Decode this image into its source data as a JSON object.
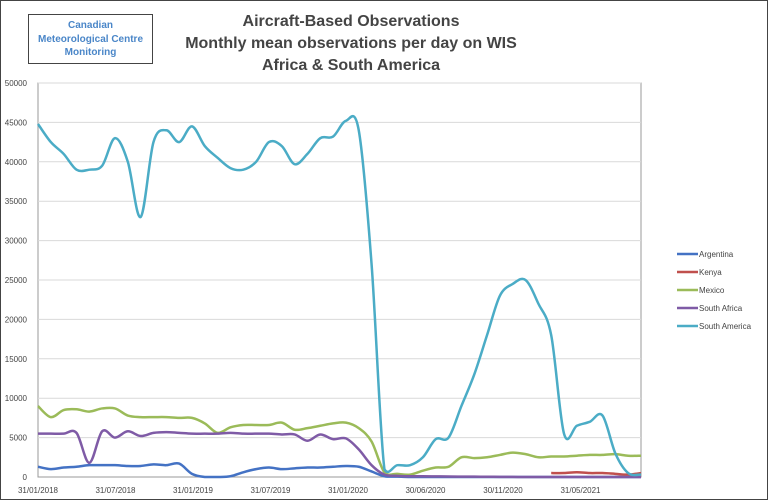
{
  "logo": {
    "line1": "Canadian",
    "line2": "Meteorological Centre",
    "line3": "Monitoring"
  },
  "chart_data": {
    "type": "line",
    "title": [
      "Aircraft-Based Observations",
      "Monthly mean observations per day on WIS",
      "Africa & South America"
    ],
    "xlabel": "",
    "ylabel": "",
    "ylim": [
      0,
      50000
    ],
    "yticks": [
      0,
      5000,
      10000,
      15000,
      20000,
      25000,
      30000,
      35000,
      40000,
      45000,
      50000
    ],
    "xtick_labels": [
      "31/01/2018",
      "31/07/2018",
      "31/01/2019",
      "31/07/2019",
      "31/01/2020",
      "30/06/2020",
      "30/11/2020",
      "31/05/2021"
    ],
    "x_start": "2018-01",
    "x_step": "month",
    "legend_position": "right",
    "series": [
      {
        "name": "Argentina",
        "color": "#4472c4",
        "values": [
          1300,
          1000,
          1200,
          1300,
          1500,
          1500,
          1500,
          1400,
          1400,
          1600,
          1500,
          1700,
          400,
          0,
          0,
          100,
          600,
          1000,
          1200,
          1000,
          1100,
          1200,
          1200,
          1300,
          1400,
          1300,
          700,
          100,
          50,
          0,
          0,
          0,
          0,
          0,
          0,
          0,
          0,
          0,
          0,
          0,
          0,
          0,
          0,
          0,
          0,
          0,
          0,
          0
        ]
      },
      {
        "name": "Kenya",
        "color": "#c0504d",
        "values": [
          null,
          null,
          null,
          null,
          null,
          null,
          null,
          null,
          null,
          null,
          null,
          null,
          null,
          null,
          null,
          null,
          null,
          null,
          null,
          null,
          null,
          null,
          null,
          null,
          null,
          null,
          null,
          null,
          null,
          null,
          null,
          null,
          null,
          null,
          null,
          null,
          null,
          null,
          null,
          null,
          500,
          500,
          600,
          500,
          500,
          400,
          300,
          500
        ]
      },
      {
        "name": "Mexico",
        "color": "#9bbb59",
        "values": [
          9000,
          7600,
          8500,
          8600,
          8300,
          8700,
          8700,
          7800,
          7600,
          7600,
          7600,
          7500,
          7500,
          6800,
          5600,
          6300,
          6600,
          6600,
          6600,
          6900,
          6000,
          6200,
          6500,
          6800,
          6900,
          6200,
          4500,
          600,
          400,
          300,
          800,
          1200,
          1300,
          2500,
          2400,
          2500,
          2800,
          3100,
          2900,
          2500,
          2600,
          2600,
          2700,
          2800,
          2800,
          2900,
          2700,
          2700
        ]
      },
      {
        "name": "South Africa",
        "color": "#7f5ba6",
        "values": [
          5500,
          5500,
          5500,
          5600,
          1800,
          5800,
          5000,
          5800,
          5200,
          5600,
          5700,
          5600,
          5500,
          5500,
          5500,
          5600,
          5500,
          5500,
          5500,
          5400,
          5400,
          4600,
          5400,
          4800,
          4900,
          3500,
          1500,
          300,
          150,
          100,
          100,
          80,
          60,
          50,
          40,
          30,
          20,
          10,
          0,
          0,
          0,
          0,
          0,
          0,
          0,
          0,
          0,
          0
        ]
      },
      {
        "name": "South America",
        "color": "#4bacc6",
        "values": [
          44800,
          42500,
          41000,
          39000,
          39000,
          39500,
          43000,
          40000,
          33000,
          42500,
          44000,
          42500,
          44500,
          42000,
          40500,
          39200,
          39000,
          40000,
          42500,
          42000,
          39700,
          41000,
          43000,
          43200,
          45200,
          44000,
          27000,
          1000,
          1500,
          1500,
          2500,
          4800,
          5000,
          9000,
          13000,
          18000,
          23000,
          24500,
          25000,
          22000,
          18000,
          5500,
          6500,
          7000,
          7800,
          3000,
          500,
          300
        ]
      }
    ]
  }
}
